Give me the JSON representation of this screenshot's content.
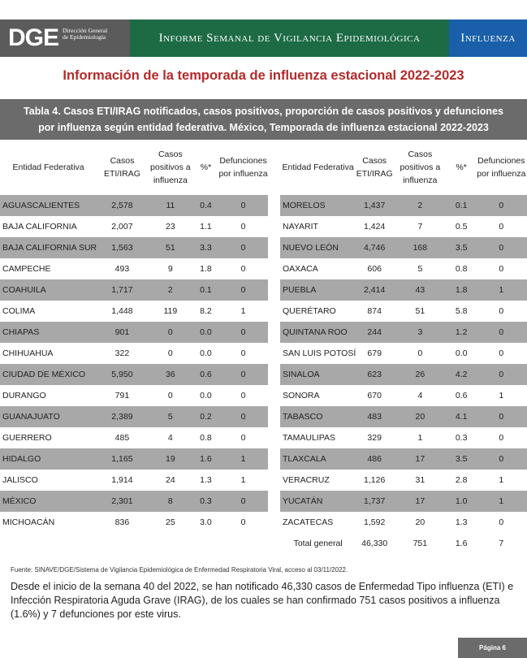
{
  "header": {
    "logo_text": "DGE",
    "logo_subtitle_line1": "Dirección General",
    "logo_subtitle_line2": "de Epidemiología",
    "report_title": "Informe Semanal de Vigilancia Epidemiológica",
    "section_tag": "Influenza",
    "colors": {
      "logo_bg": "#5b5b5b",
      "title_bg": "#1c6b45",
      "tag_bg": "#1a5fa9"
    }
  },
  "main_title": "Información de la temporada de influenza estacional 2022-2023",
  "table_caption_line1": "Tabla 4. Casos ETI/IRAG notificados, casos positivos, proporción de casos positivos  y defunciones",
  "table_caption_line2": "por influenza según entidad federativa. México, Temporada de influenza estacional 2022-2023",
  "columns_left": {
    "entity": "Entidad Federativa",
    "cases": "Casos ETI/IRAG",
    "positive": "Casos positivos a influenza",
    "pct": "%*",
    "deaths": "Defunciones por influenza"
  },
  "columns_right": {
    "entity": "Entidad Federativa",
    "cases": "Casos ETI/IRAG",
    "positive": "Casos positivos a influenza",
    "pct": "%*",
    "deaths": "Defunciones por influenza"
  },
  "rows_left": [
    {
      "entity": "AGUASCALIENTES",
      "cases": "2,578",
      "positive": "11",
      "pct": "0.4",
      "deaths": "0"
    },
    {
      "entity": "BAJA CALIFORNIA",
      "cases": "2,007",
      "positive": "23",
      "pct": "1.1",
      "deaths": "0"
    },
    {
      "entity": "BAJA CALIFORNIA SUR",
      "cases": "1,563",
      "positive": "51",
      "pct": "3.3",
      "deaths": "0"
    },
    {
      "entity": "CAMPECHE",
      "cases": "493",
      "positive": "9",
      "pct": "1.8",
      "deaths": "0"
    },
    {
      "entity": "COAHUILA",
      "cases": "1,717",
      "positive": "2",
      "pct": "0.1",
      "deaths": "0"
    },
    {
      "entity": "COLIMA",
      "cases": "1,448",
      "positive": "119",
      "pct": "8.2",
      "deaths": "1"
    },
    {
      "entity": "CHIAPAS",
      "cases": "901",
      "positive": "0",
      "pct": "0.0",
      "deaths": "0"
    },
    {
      "entity": "CHIHUAHUA",
      "cases": "322",
      "positive": "0",
      "pct": "0.0",
      "deaths": "0"
    },
    {
      "entity": "CIUDAD DE MÉXICO",
      "cases": "5,950",
      "positive": "36",
      "pct": "0.6",
      "deaths": "0"
    },
    {
      "entity": "DURANGO",
      "cases": "791",
      "positive": "0",
      "pct": "0.0",
      "deaths": "0"
    },
    {
      "entity": "GUANAJUATO",
      "cases": "2,389",
      "positive": "5",
      "pct": "0.2",
      "deaths": "0"
    },
    {
      "entity": "GUERRERO",
      "cases": "485",
      "positive": "4",
      "pct": "0.8",
      "deaths": "0"
    },
    {
      "entity": "HIDALGO",
      "cases": "1,165",
      "positive": "19",
      "pct": "1.6",
      "deaths": "1"
    },
    {
      "entity": "JALISCO",
      "cases": "1,914",
      "positive": "24",
      "pct": "1.3",
      "deaths": "1"
    },
    {
      "entity": "MÉXICO",
      "cases": "2,301",
      "positive": "8",
      "pct": "0.3",
      "deaths": "0"
    },
    {
      "entity": "MICHOACÁN",
      "cases": "836",
      "positive": "25",
      "pct": "3.0",
      "deaths": "0"
    }
  ],
  "rows_right": [
    {
      "entity": "MORELOS",
      "cases": "1,437",
      "positive": "2",
      "pct": "0.1",
      "deaths": "0"
    },
    {
      "entity": "NAYARIT",
      "cases": "1,424",
      "positive": "7",
      "pct": "0.5",
      "deaths": "0"
    },
    {
      "entity": "NUEVO LEÓN",
      "cases": "4,746",
      "positive": "168",
      "pct": "3.5",
      "deaths": "0"
    },
    {
      "entity": "OAXACA",
      "cases": "606",
      "positive": "5",
      "pct": "0.8",
      "deaths": "0"
    },
    {
      "entity": "PUEBLA",
      "cases": "2,414",
      "positive": "43",
      "pct": "1.8",
      "deaths": "1"
    },
    {
      "entity": "QUERÉTARO",
      "cases": "874",
      "positive": "51",
      "pct": "5.8",
      "deaths": "0"
    },
    {
      "entity": "QUINTANA ROO",
      "cases": "244",
      "positive": "3",
      "pct": "1.2",
      "deaths": "0"
    },
    {
      "entity": "SAN LUIS POTOSÍ",
      "cases": "679",
      "positive": "0",
      "pct": "0.0",
      "deaths": "0"
    },
    {
      "entity": "SINALOA",
      "cases": "623",
      "positive": "26",
      "pct": "4.2",
      "deaths": "0"
    },
    {
      "entity": "SONORA",
      "cases": "670",
      "positive": "4",
      "pct": "0.6",
      "deaths": "1"
    },
    {
      "entity": "TABASCO",
      "cases": "483",
      "positive": "20",
      "pct": "4.1",
      "deaths": "0"
    },
    {
      "entity": "TAMAULIPAS",
      "cases": "329",
      "positive": "1",
      "pct": "0.3",
      "deaths": "0"
    },
    {
      "entity": "TLAXCALA",
      "cases": "486",
      "positive": "17",
      "pct": "3.5",
      "deaths": "0"
    },
    {
      "entity": "VERACRUZ",
      "cases": "1,126",
      "positive": "31",
      "pct": "2.8",
      "deaths": "1"
    },
    {
      "entity": "YUCATÁN",
      "cases": "1,737",
      "positive": "17",
      "pct": "1.0",
      "deaths": "1"
    },
    {
      "entity": "ZACATECAS",
      "cases": "1,592",
      "positive": "20",
      "pct": "1.3",
      "deaths": "0"
    }
  ],
  "total_row": {
    "entity": "Total general",
    "cases": "46,330",
    "positive": "751",
    "pct": "1.6",
    "deaths": "7"
  },
  "source_note": "Fuente: SINAVE/DGE/Sistema de Vigilancia Epidemiológica de Enfermedad Respiratoria Viral, acceso al 03/11/2022.",
  "summary_paragraph": "Desde el inicio de la semana 40 del 2022, se han notificado 46,330 casos de Enfermedad Tipo influenza (ETI) e Infección Respiratoria Aguda Grave (IRAG), de los cuales se han confirmado 751 casos positivos a influenza (1.6%) y 7 defunciones por este virus.",
  "footer": {
    "page_label": "Página 6"
  }
}
